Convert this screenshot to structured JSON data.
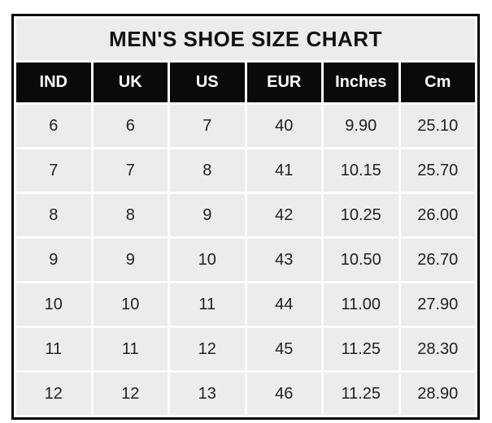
{
  "chart_data": {
    "type": "table",
    "title": "MEN'S SHOE SIZE CHART",
    "columns": [
      "IND",
      "UK",
      "US",
      "EUR",
      "Inches",
      "Cm"
    ],
    "rows": [
      [
        "6",
        "6",
        "7",
        "40",
        "9.90",
        "25.10"
      ],
      [
        "7",
        "7",
        "8",
        "41",
        "10.15",
        "25.70"
      ],
      [
        "8",
        "8",
        "9",
        "42",
        "10.25",
        "26.00"
      ],
      [
        "9",
        "9",
        "10",
        "43",
        "10.50",
        "26.70"
      ],
      [
        "10",
        "10",
        "11",
        "44",
        "11.00",
        "27.90"
      ],
      [
        "11",
        "11",
        "12",
        "45",
        "11.25",
        "28.30"
      ],
      [
        "12",
        "12",
        "13",
        "46",
        "11.25",
        "28.90"
      ]
    ]
  },
  "colors": {
    "border": "#000000",
    "gap": "#fcfcfc",
    "cell_bg": "#ececec",
    "cell_text": "#222222",
    "title_text": "#111111",
    "header_bg": "#0a0a0a",
    "header_text": "#ffffff",
    "page_bg": "#ffffff"
  }
}
